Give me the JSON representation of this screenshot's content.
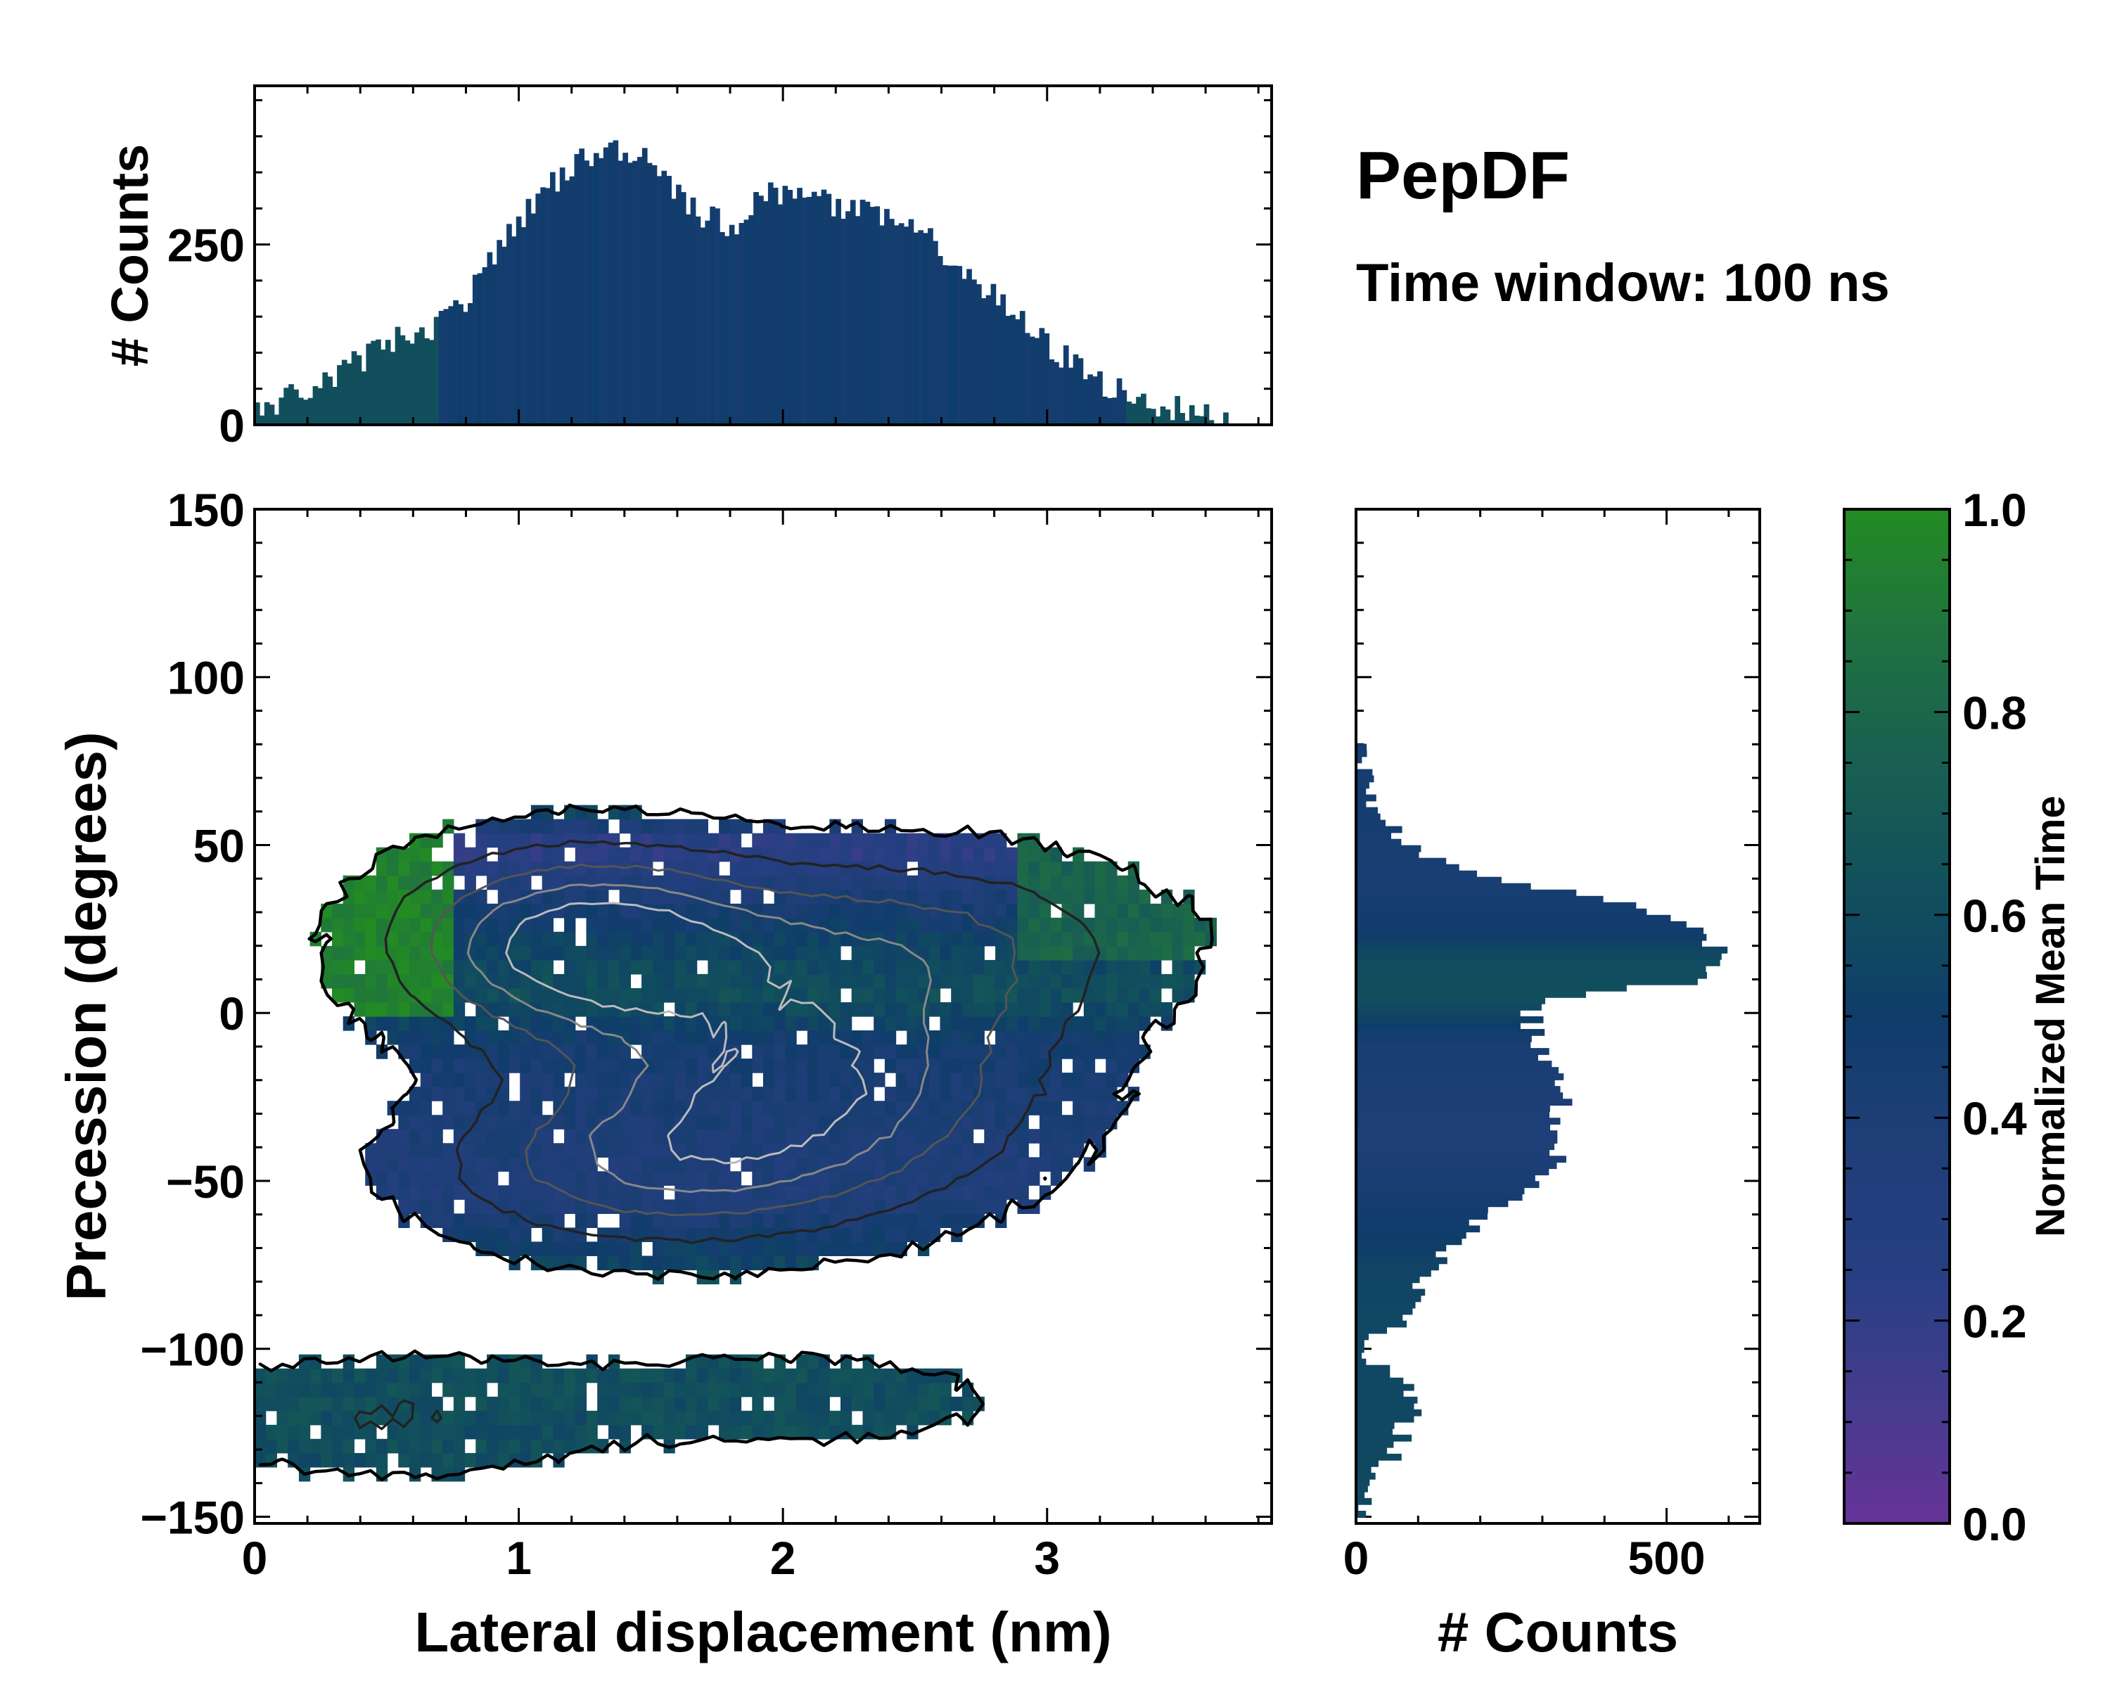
{
  "chart_data": {
    "type": "joint-histogram",
    "title": "PepDF",
    "subtitle": "Time window: 100 ns",
    "main": {
      "type": "heatmap",
      "xlabel": "Lateral displacement (nm)",
      "ylabel": "Precession (degrees)",
      "xlim": [
        0,
        3.85
      ],
      "ylim": [
        -152,
        150
      ],
      "xticks": [
        0,
        1,
        2,
        3
      ],
      "xtick_labels": [
        "0",
        "1",
        "2",
        "3"
      ],
      "yticks": [
        150,
        100,
        50,
        0,
        -50,
        -100,
        -150
      ],
      "ytick_labels": [
        "150",
        "100",
        "50",
        "0",
        "−50",
        "−100",
        "−150"
      ],
      "density_clusters": [
        {
          "cx": 1.25,
          "cy": 20,
          "sx": 0.45,
          "sy": 18,
          "amp": 1.0
        },
        {
          "cx": 2.1,
          "cy": -20,
          "sx": 0.55,
          "sy": 22,
          "amp": 0.8
        },
        {
          "cx": 1.5,
          "cy": -45,
          "sx": 0.55,
          "sy": 16,
          "amp": 0.55
        },
        {
          "cx": 2.45,
          "cy": 20,
          "sx": 0.6,
          "sy": 18,
          "amp": 0.5
        },
        {
          "cx": 0.5,
          "cy": -120,
          "sx": 0.5,
          "sy": 12,
          "amp": 0.25
        },
        {
          "cx": 2.0,
          "cy": -115,
          "sx": 0.6,
          "sy": 10,
          "amp": 0.18
        }
      ]
    },
    "top_histogram": {
      "type": "bar",
      "ylabel": "# Counts",
      "ylim": [
        0,
        470
      ],
      "yticks": [
        0,
        250
      ],
      "ytick_labels": [
        "0",
        "250"
      ],
      "profile_x": [
        0,
        0.1,
        0.3,
        0.5,
        0.6,
        0.7,
        0.8,
        0.9,
        1.0,
        1.1,
        1.2,
        1.3,
        1.4,
        1.5,
        1.6,
        1.7,
        1.8,
        1.9,
        2.0,
        2.1,
        2.2,
        2.4,
        2.6,
        2.8,
        3.0,
        3.2,
        3.4,
        3.6,
        3.7
      ],
      "profile_counts": [
        10,
        35,
        65,
        115,
        130,
        140,
        175,
        225,
        285,
        325,
        360,
        375,
        385,
        370,
        325,
        290,
        275,
        310,
        325,
        330,
        300,
        285,
        245,
        175,
        110,
        60,
        30,
        10,
        0
      ]
    },
    "right_histogram": {
      "type": "barh",
      "xlabel": "# Counts",
      "xlim": [
        0,
        650
      ],
      "xticks": [
        0,
        500
      ],
      "xtick_labels": [
        "0",
        "500"
      ],
      "profile_y": [
        -152,
        -140,
        -130,
        -120,
        -112,
        -105,
        -100,
        -90,
        -80,
        -70,
        -60,
        -50,
        -45,
        -40,
        -30,
        -20,
        -10,
        0,
        5,
        10,
        15,
        20,
        25,
        30,
        35,
        40,
        45,
        50,
        60,
        70,
        80
      ],
      "profile_counts": [
        5,
        30,
        60,
        90,
        95,
        30,
        15,
        80,
        110,
        150,
        210,
        300,
        330,
        310,
        330,
        340,
        290,
        280,
        330,
        560,
        590,
        580,
        540,
        480,
        370,
        230,
        140,
        80,
        30,
        10,
        0
      ]
    },
    "colorbar": {
      "label": "Normalized Mean Time",
      "range": [
        0.0,
        1.0
      ],
      "ticks": [
        0.0,
        0.2,
        0.4,
        0.6,
        0.8,
        1.0
      ],
      "tick_labels": [
        "0.0",
        "0.2",
        "0.4",
        "0.6",
        "0.8",
        "1.0"
      ],
      "colormap": [
        "#663399",
        "#443c8c",
        "#263f82",
        "#1f3e78",
        "#0f3d6a",
        "#11505c",
        "#195f52",
        "#1f7240",
        "#238b23"
      ]
    }
  }
}
